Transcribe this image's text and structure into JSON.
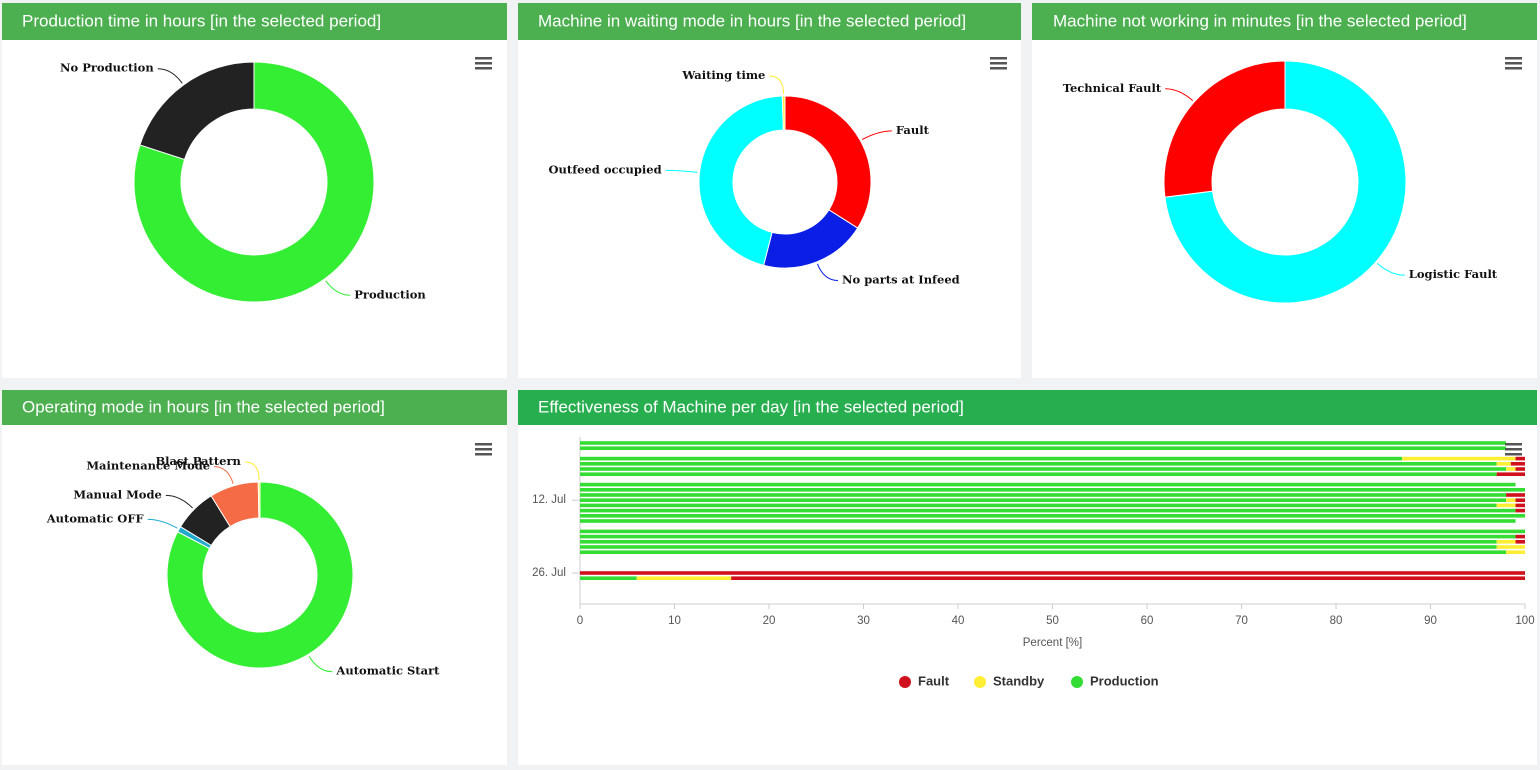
{
  "chart_data": [
    {
      "type": "donut",
      "title": "Production time in hours [in the selected period]",
      "categories": [
        "Production",
        "No Production"
      ],
      "values": [
        80,
        20
      ],
      "colors": [
        "#33ee33",
        "#222222"
      ]
    },
    {
      "type": "donut",
      "title": "Machine in waiting mode in hours [in the selected period]",
      "categories": [
        "Fault",
        "No parts at Infeed",
        "Outfeed occupied",
        "Waiting time"
      ],
      "values": [
        34,
        20,
        45.5,
        0.5
      ],
      "colors": [
        "#ff0000",
        "#0a1ee6",
        "#00ffff",
        "#ffee33"
      ]
    },
    {
      "type": "donut",
      "title": "Machine not working in minutes [in the selected period]",
      "categories": [
        "Logistic Fault",
        "Technical Fault"
      ],
      "values": [
        73,
        27
      ],
      "colors": [
        "#00ffff",
        "#ff0000"
      ]
    },
    {
      "type": "donut",
      "title": "Operating mode in hours [in the selected period]",
      "categories": [
        "Automatic Start",
        "Automatic OFF",
        "Manual Mode",
        "Maintenance Mode",
        "Blast Pattern"
      ],
      "values": [
        82.7,
        1,
        7.5,
        8.5,
        0.3
      ],
      "colors": [
        "#33ee33",
        "#22aacc",
        "#222222",
        "#f56b45",
        "#ffee33"
      ]
    },
    {
      "type": "bar",
      "horizontal": true,
      "stacked": true,
      "title": "Effectiveness of Machine per day [in the selected period]",
      "categories": [
        null,
        null,
        null,
        null,
        null,
        null,
        null,
        null,
        null,
        null,
        null,
        "12. Jul",
        null,
        null,
        null,
        null,
        null,
        null,
        null,
        null,
        null,
        null,
        null,
        null,
        null,
        "26. Jul",
        null
      ],
      "series": [
        {
          "name": "Fault",
          "color": "#d0101c",
          "values": [
            0,
            0,
            0,
            1,
            1.5,
            1,
            3,
            0,
            0,
            0,
            2,
            1,
            1,
            1,
            0,
            0,
            0,
            0,
            1,
            1,
            0,
            0,
            0,
            0,
            0,
            100,
            84
          ]
        },
        {
          "name": "Standby",
          "color": "#ffee33",
          "values": [
            0,
            0,
            0,
            12,
            1.5,
            1,
            0,
            0,
            0,
            0,
            0,
            1,
            2,
            0,
            0,
            0,
            0,
            0,
            0,
            2,
            3,
            2,
            0,
            0,
            0,
            0,
            10
          ]
        },
        {
          "name": "Production",
          "color": "#33dd33",
          "values": [
            98,
            98,
            0,
            87,
            97,
            98,
            97,
            0,
            99,
            100,
            98,
            98,
            97,
            99,
            100,
            99,
            0,
            100,
            99,
            97,
            97,
            98,
            0,
            0,
            0,
            0,
            6
          ]
        }
      ],
      "xlim": [
        0,
        100
      ],
      "xticks": [
        0,
        10,
        20,
        30,
        40,
        50,
        60,
        70,
        80,
        90,
        100
      ],
      "x_label": "Percent [%]",
      "legend": "bottom"
    }
  ]
}
